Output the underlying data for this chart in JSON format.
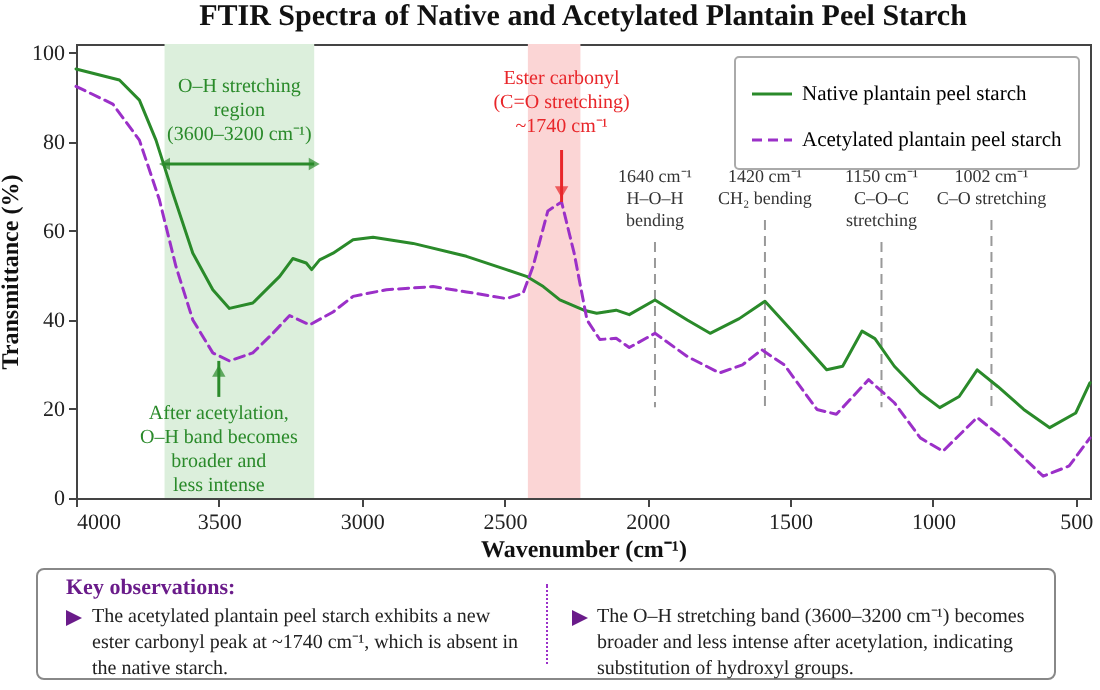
{
  "chart_data": {
    "type": "line",
    "title": "FTIR Spectra of Native and Acetylated Plantain Peel Starch",
    "xlabel": "Wavenumber (cm⁻¹)",
    "ylabel": "Transmittance (%)",
    "xlim": [
      4000,
      450
    ],
    "ylim": [
      0,
      102
    ],
    "xticks": [
      4000,
      3500,
      3000,
      2500,
      2000,
      1500,
      1000,
      500
    ],
    "yticks": [
      0,
      20,
      40,
      60,
      80,
      100
    ],
    "grid": false,
    "legend": "top right",
    "series": [
      {
        "name": "Native plantain peel starch",
        "color": "#2a8a2a",
        "line_style": "solid",
        "x": [
          4000,
          3848,
          3778,
          3720,
          3661,
          3591,
          3521,
          3463,
          3381,
          3287,
          3241,
          3194,
          3175,
          3147,
          3100,
          3030,
          2960,
          2820,
          2633,
          2493,
          2423,
          2364,
          2306,
          2222,
          2177,
          2109,
          2063,
          1973,
          1860,
          1780,
          1678,
          1588,
          1497,
          1372,
          1316,
          1248,
          1203,
          1135,
          1044,
          976,
          908,
          845,
          772,
          682,
          591,
          500,
          450
        ],
        "values": [
          96.4,
          93.9,
          89.4,
          80.4,
          68.5,
          55,
          46.8,
          42.6,
          43.8,
          49.8,
          53.8,
          52.8,
          51.3,
          53.5,
          55,
          58,
          58.6,
          57.2,
          54.3,
          51.3,
          49.8,
          47.5,
          44.5,
          42.2,
          41.5,
          42.2,
          41.2,
          44.5,
          40,
          37,
          40.3,
          44.2,
          37.8,
          28.8,
          29.6,
          37.5,
          35.8,
          29.6,
          23.6,
          20.3,
          22.8,
          28.8,
          25,
          19.9,
          15.8,
          19.1,
          25.9
        ]
      },
      {
        "name": "Acetylated plantain peel starch",
        "color": "#9b30c8",
        "line_style": "dashed",
        "x": [
          4000,
          3871,
          3778,
          3708,
          3650,
          3591,
          3521,
          3463,
          3381,
          3311,
          3252,
          3182,
          3100,
          3030,
          2913,
          2750,
          2633,
          2493,
          2435,
          2400,
          2348,
          2300,
          2256,
          2211,
          2166,
          2109,
          2063,
          1973,
          1860,
          1747,
          1667,
          1599,
          1520,
          1406,
          1338,
          1225,
          1135,
          1044,
          965,
          845,
          750,
          614,
          523,
          450
        ],
        "values": [
          92.5,
          88.5,
          80.4,
          67,
          52,
          40,
          32.6,
          30.8,
          32.6,
          37,
          41,
          38.9,
          41.8,
          45.3,
          46.8,
          47.5,
          46.3,
          44.8,
          46,
          52,
          64.5,
          66.5,
          55,
          40,
          35.6,
          35.9,
          33.8,
          37,
          31.8,
          28.1,
          29.9,
          33.3,
          29.9,
          19.9,
          18.8,
          26.6,
          21.4,
          13.5,
          10.5,
          18.1,
          13.2,
          4.9,
          7.2,
          13.5
        ]
      }
    ],
    "bands": [
      {
        "axis": "x",
        "from": 3690,
        "to": 3166,
        "label": "O–H stretching\nregion\n(3600–3200 cm⁻¹)",
        "color": "#dcefdc"
      },
      {
        "axis": "x",
        "from": 2418,
        "to": 2234,
        "color": "#fbd5d5"
      }
    ],
    "ref_lines": [
      {
        "axis": "x",
        "value": 1973,
        "label": "1640 cm⁻¹\nH–O–H\nbending",
        "color": "#999999",
        "line_style": "dashed"
      },
      {
        "axis": "x",
        "value": 1588,
        "label": "1420 cm⁻¹\nCH₂ bending",
        "color": "#999999",
        "line_style": "dashed"
      },
      {
        "axis": "x",
        "value": 1180,
        "label": "1150 cm⁻¹\nC–O–C\nstretching",
        "color": "#999999",
        "line_style": "dashed"
      },
      {
        "axis": "x",
        "value": 795,
        "label": "1002 cm⁻¹\nC–O stretching",
        "color": "#999999",
        "line_style": "dashed"
      }
    ],
    "annotations": [
      {
        "text": "Ester carbonyl\n(C=O stretching)\n~1740 cm⁻¹",
        "x": 2300,
        "y": 66.5
      },
      {
        "text": "After acetylation,\nO–H band becomes\nbroader and\nless intense",
        "x": 3500,
        "y": 30.8
      },
      "Key observations:",
      "The acetylated plantain peel starch exhibits a new ester carbonyl peak at ~1740 cm⁻¹, which is absent in the native starch.",
      "The O–H stretching band (3600–3200 cm⁻¹) becomes broader and less intense after acetylation, indicating substitution of hydroxyl groups."
    ]
  }
}
